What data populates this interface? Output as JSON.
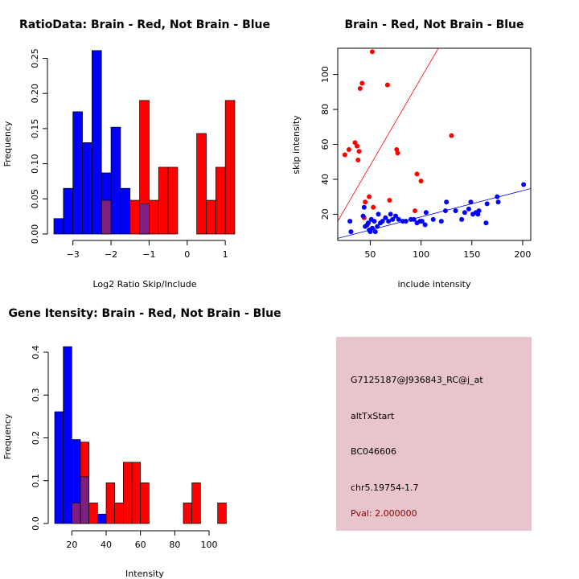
{
  "colors": {
    "red": "#ff0000",
    "blue": "#0000ff",
    "overlap": "#7f1f7f",
    "panel": "#e8c4cc",
    "pval": "#8b0000"
  },
  "chart_data": [
    {
      "type": "bar",
      "title": "RatioData: Brain - Red, Not Brain - Blue",
      "xlabel": "Log2 Ratio Skip/Include",
      "ylabel": "Frequency",
      "xlim": [
        -3.5,
        1.25
      ],
      "ylim": [
        0,
        0.27
      ],
      "xticks": [
        -3,
        -2,
        -1,
        0,
        1
      ],
      "yticks": [
        0.0,
        0.05,
        0.1,
        0.15,
        0.2,
        0.25
      ],
      "ytick_labels": [
        "0.00",
        "0.05",
        "0.10",
        "0.15",
        "0.20",
        "0.25"
      ],
      "series": [
        {
          "name": "Not Brain",
          "color": "blue",
          "bins": [
            [
              -3.5,
              -3.25,
              0.022
            ],
            [
              -3.25,
              -3.0,
              0.065
            ],
            [
              -3.0,
              -2.75,
              0.174
            ],
            [
              -2.75,
              -2.5,
              0.13
            ],
            [
              -2.5,
              -2.25,
              0.261
            ],
            [
              -2.25,
              -2.0,
              0.087
            ],
            [
              -2.0,
              -1.75,
              0.152
            ],
            [
              -1.75,
              -1.5,
              0.065
            ],
            [
              -1.25,
              -1.0,
              0.043
            ]
          ]
        },
        {
          "name": "Brain",
          "color": "red",
          "bins": [
            [
              -2.25,
              -2.0,
              0.048
            ],
            [
              -1.5,
              -1.25,
              0.048
            ],
            [
              -1.25,
              -1.0,
              0.19
            ],
            [
              -1.0,
              -0.75,
              0.048
            ],
            [
              -0.75,
              -0.5,
              0.095
            ],
            [
              -0.5,
              -0.25,
              0.095
            ],
            [
              0.25,
              0.5,
              0.143
            ],
            [
              0.5,
              0.75,
              0.048
            ],
            [
              0.75,
              1.0,
              0.095
            ],
            [
              1.0,
              1.25,
              0.19
            ]
          ]
        }
      ]
    },
    {
      "type": "scatter",
      "title": "Brain - Red, Not Brain - Blue",
      "xlabel": "include intensity",
      "ylabel": "skip intensity",
      "xlim": [
        18,
        208
      ],
      "ylim": [
        5,
        115
      ],
      "xticks": [
        50,
        100,
        150,
        200
      ],
      "yticks": [
        20,
        40,
        60,
        80,
        100
      ],
      "series": [
        {
          "name": "Brain",
          "color": "red",
          "points": [
            [
              25,
              54
            ],
            [
              29,
              57
            ],
            [
              35,
              61
            ],
            [
              37,
              59
            ],
            [
              38,
              51
            ],
            [
              39,
              56
            ],
            [
              40,
              92
            ],
            [
              42,
              95
            ],
            [
              45,
              27
            ],
            [
              44,
              18
            ],
            [
              49,
              30
            ],
            [
              52,
              113
            ],
            [
              53,
              24
            ],
            [
              67,
              94
            ],
            [
              69,
              28
            ],
            [
              76,
              57
            ],
            [
              77,
              55
            ],
            [
              94,
              22
            ],
            [
              96,
              43
            ],
            [
              100,
              39
            ],
            [
              130,
              65
            ]
          ]
        },
        {
          "name": "Not Brain",
          "color": "blue",
          "points": [
            [
              30,
              16
            ],
            [
              31,
              10
            ],
            [
              43,
              19
            ],
            [
              44,
              24
            ],
            [
              45,
              13
            ],
            [
              47,
              14
            ],
            [
              48,
              15
            ],
            [
              49,
              11
            ],
            [
              50,
              10
            ],
            [
              51,
              17
            ],
            [
              52,
              12
            ],
            [
              54,
              16
            ],
            [
              55,
              10
            ],
            [
              57,
              13
            ],
            [
              58,
              20
            ],
            [
              60,
              15
            ],
            [
              62,
              16
            ],
            [
              65,
              18
            ],
            [
              68,
              16
            ],
            [
              70,
              20
            ],
            [
              72,
              17
            ],
            [
              75,
              19
            ],
            [
              78,
              17
            ],
            [
              82,
              16
            ],
            [
              85,
              16
            ],
            [
              90,
              17
            ],
            [
              93,
              17
            ],
            [
              96,
              15
            ],
            [
              99,
              16
            ],
            [
              101,
              16
            ],
            [
              104,
              14
            ],
            [
              105,
              21
            ],
            [
              112,
              17
            ],
            [
              120,
              16
            ],
            [
              124,
              22
            ],
            [
              125,
              27
            ],
            [
              134,
              22
            ],
            [
              140,
              17
            ],
            [
              143,
              21
            ],
            [
              147,
              23
            ],
            [
              149,
              27
            ],
            [
              151,
              20
            ],
            [
              154,
              21
            ],
            [
              156,
              20
            ],
            [
              157,
              22
            ],
            [
              164,
              15
            ],
            [
              165,
              26
            ],
            [
              175,
              30
            ],
            [
              176,
              27
            ],
            [
              201,
              37
            ]
          ]
        }
      ],
      "lines": [
        {
          "color": "red",
          "intercept": -2,
          "slope": 1.0
        },
        {
          "color": "blue",
          "intercept": 3.5,
          "slope": 0.15
        }
      ]
    },
    {
      "type": "bar",
      "title": "Gene Itensity: Brain - Red, Not Brain - Blue",
      "xlabel": "Intensity",
      "ylabel": "Frequency",
      "xlim": [
        10,
        115
      ],
      "ylim": [
        0,
        0.43
      ],
      "xticks": [
        20,
        40,
        60,
        80,
        100
      ],
      "yticks": [
        0.0,
        0.1,
        0.2,
        0.3,
        0.4
      ],
      "ytick_labels": [
        "0.0",
        "0.1",
        "0.2",
        "0.3",
        "0.4"
      ],
      "series": [
        {
          "name": "Not Brain",
          "color": "blue",
          "bins": [
            [
              10,
              15,
              0.261
            ],
            [
              15,
              20,
              0.413
            ],
            [
              20,
              25,
              0.196
            ],
            [
              25,
              30,
              0.109
            ],
            [
              35,
              40,
              0.022
            ]
          ]
        },
        {
          "name": "Brain",
          "color": "red",
          "bins": [
            [
              20,
              25,
              0.048
            ],
            [
              25,
              30,
              0.19
            ],
            [
              30,
              35,
              0.048
            ],
            [
              40,
              45,
              0.095
            ],
            [
              45,
              50,
              0.048
            ],
            [
              50,
              55,
              0.143
            ],
            [
              55,
              60,
              0.143
            ],
            [
              60,
              65,
              0.095
            ],
            [
              85,
              90,
              0.048
            ],
            [
              90,
              95,
              0.095
            ],
            [
              105,
              110,
              0.048
            ]
          ]
        }
      ]
    }
  ],
  "info_panel": {
    "probe_id": "G7125187@J936843_RC@j_at",
    "event_type": "altTxStart",
    "accession": "BC046606",
    "location": "chr5.19754-1.7",
    "pval": "Pval: 2.000000"
  }
}
